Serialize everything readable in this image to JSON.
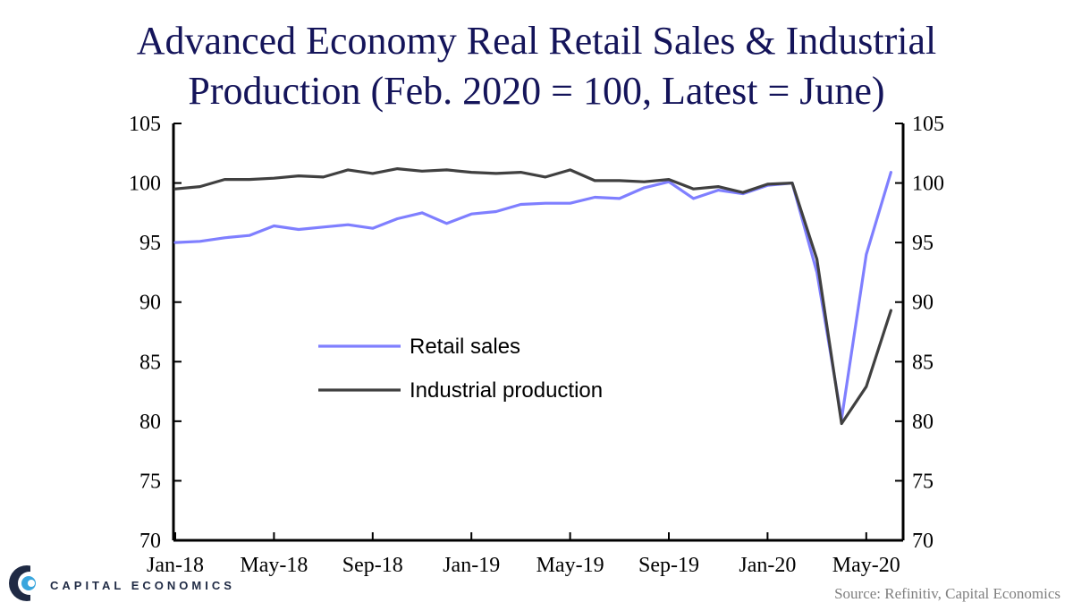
{
  "chart_data": {
    "type": "line",
    "title_line1": "Advanced Economy Real Retail Sales & Industrial",
    "title_line2": "Production (Feb. 2020 = 100, Latest = June)",
    "x": [
      "Jan-18",
      "Feb-18",
      "Mar-18",
      "Apr-18",
      "May-18",
      "Jun-18",
      "Jul-18",
      "Aug-18",
      "Sep-18",
      "Oct-18",
      "Nov-18",
      "Dec-18",
      "Jan-19",
      "Feb-19",
      "Mar-19",
      "Apr-19",
      "May-19",
      "Jun-19",
      "Jul-19",
      "Aug-19",
      "Sep-19",
      "Oct-19",
      "Nov-19",
      "Dec-19",
      "Jan-20",
      "Feb-20",
      "Mar-20",
      "Apr-20",
      "May-20",
      "Jun-20"
    ],
    "x_tick_labels": [
      "Jan-18",
      "May-18",
      "Sep-18",
      "Jan-19",
      "May-19",
      "Sep-19",
      "Jan-20",
      "May-20"
    ],
    "ylim": [
      70,
      105
    ],
    "y_ticks": [
      70,
      75,
      80,
      85,
      90,
      95,
      100,
      105
    ],
    "y_tick_labels": [
      "70",
      "75",
      "80",
      "85",
      "90",
      "95",
      "100",
      "105"
    ],
    "grid": false,
    "legend_position": "center-left",
    "series": [
      {
        "name": "Retail sales",
        "color": "#7f7fff",
        "values": [
          95.0,
          95.1,
          95.4,
          95.6,
          96.4,
          96.1,
          96.3,
          96.5,
          96.2,
          97.0,
          97.5,
          96.6,
          97.4,
          97.6,
          98.2,
          98.3,
          98.3,
          98.8,
          98.7,
          99.6,
          100.1,
          98.7,
          99.4,
          99.1,
          99.8,
          100.0,
          92.5,
          80.2,
          94.0,
          100.9
        ]
      },
      {
        "name": "Industrial production",
        "color": "#404040",
        "values": [
          99.5,
          99.7,
          100.3,
          100.3,
          100.4,
          100.6,
          100.5,
          101.1,
          100.8,
          101.2,
          101.0,
          101.1,
          100.9,
          100.8,
          100.9,
          100.5,
          101.1,
          100.2,
          100.2,
          100.1,
          100.3,
          99.5,
          99.7,
          99.2,
          99.9,
          100.0,
          93.6,
          79.8,
          82.9,
          89.3
        ]
      }
    ]
  },
  "footer": {
    "logo_text": "CAPITAL ECONOMICS",
    "source": "Source: Refinitiv, Capital Economics"
  },
  "colors": {
    "title": "#14145a",
    "retail": "#7f7fff",
    "industrial": "#404040"
  }
}
